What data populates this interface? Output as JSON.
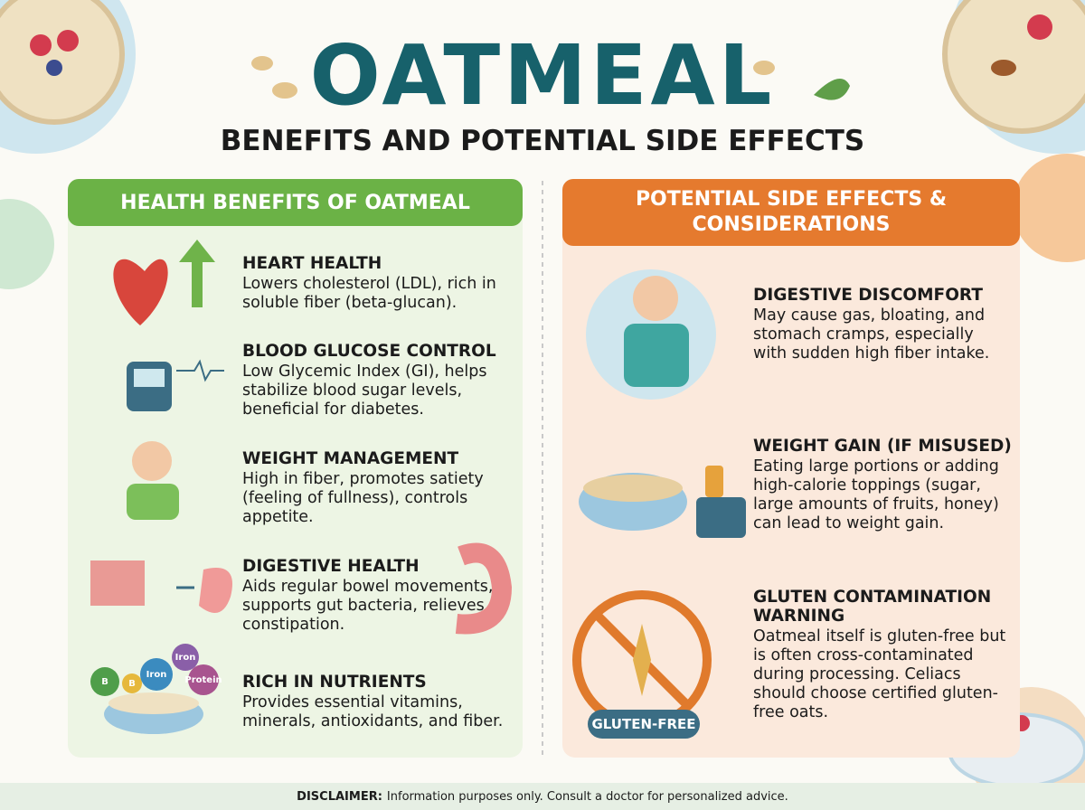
{
  "header": {
    "title": "OATMEAL",
    "subtitle": "BENEFITS AND POTENTIAL SIDE EFFECTS"
  },
  "benefits": {
    "heading": "HEALTH BENEFITS OF OATMEAL",
    "items": [
      {
        "title": "HEART HEALTH",
        "text": "Lowers cholesterol (LDL), rich in soluble fiber (beta-glucan)."
      },
      {
        "title": "BLOOD GLUCOSE CONTROL",
        "text": "Low Glycemic Index (GI), helps stabilize blood sugar levels, beneficial for diabetes."
      },
      {
        "title": "WEIGHT MANAGEMENT",
        "text": "High in fiber, promotes satiety (feeling of fullness), controls appetite."
      },
      {
        "title": "DIGESTIVE HEALTH",
        "text": "Aids regular bowel movements, supports gut bacteria, relieves constipation."
      },
      {
        "title": "RICH IN NUTRIENTS",
        "text": "Provides essential vitamins, minerals, antioxidants, and fiber."
      }
    ],
    "nutrient_tags": [
      "B",
      "Iron",
      "Iron",
      "Protein",
      "B"
    ]
  },
  "side_effects": {
    "heading": "POTENTIAL SIDE EFFECTS & CONSIDERATIONS",
    "items": [
      {
        "title": "DIGESTIVE DISCOMFORT",
        "text": "May cause gas, bloating, and stomach cramps, especially with sudden high fiber intake."
      },
      {
        "title": "WEIGHT GAIN (IF MISUSED)",
        "text": "Eating large portions or adding high-calorie toppings (sugar, large amounts of fruits, honey) can lead to weight gain."
      },
      {
        "title": "GLUTEN CONTAMINATION WARNING",
        "text": "Oatmeal itself is gluten-free but is often cross-contaminated during processing. Celiacs should choose certified gluten-free oats."
      }
    ],
    "badge": "GLUTEN-FREE"
  },
  "footer": {
    "label": "DISCLAIMER:",
    "text": "Information purposes only. Consult a doctor for personalized advice."
  }
}
